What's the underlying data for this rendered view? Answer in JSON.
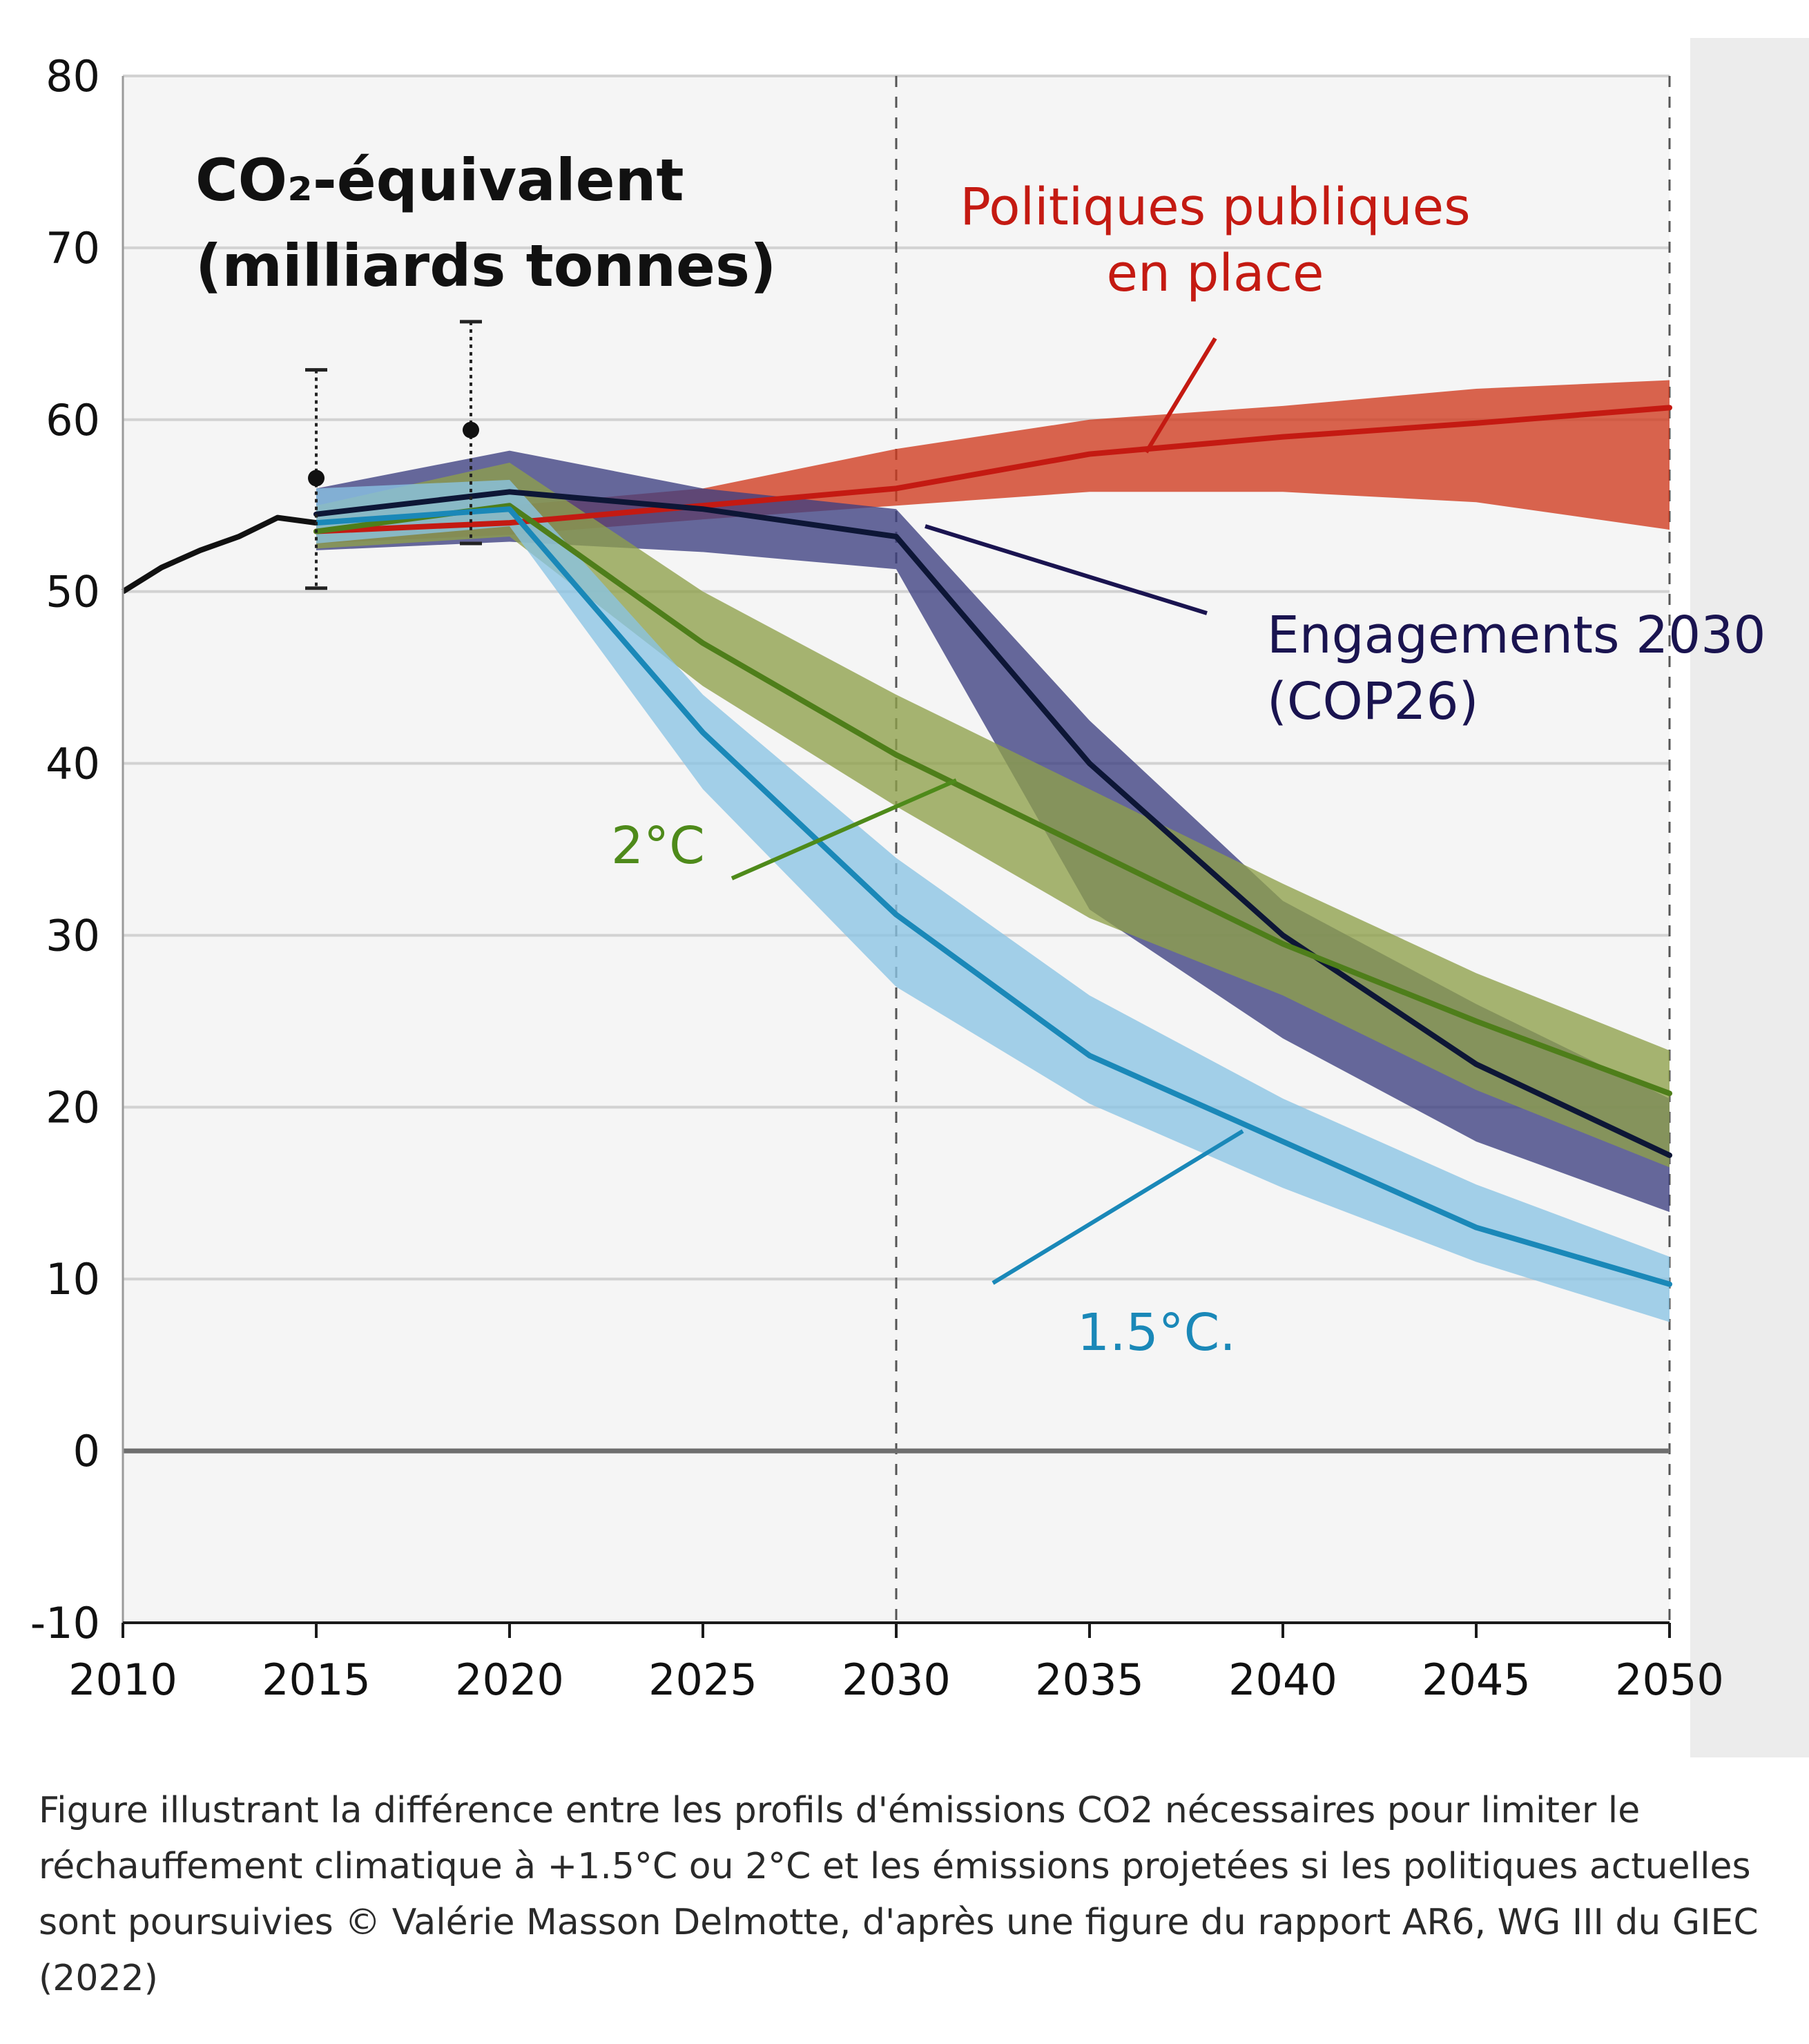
{
  "chart_data": {
    "type": "line",
    "title_lines": [
      "CO₂-équivalent",
      "(milliards tonnes)"
    ],
    "xlim": [
      2010,
      2050
    ],
    "ylim": [
      -10,
      80
    ],
    "x_ticks": [
      2010,
      2015,
      2020,
      2025,
      2030,
      2035,
      2040,
      2045,
      2050
    ],
    "y_ticks": [
      80,
      70,
      60,
      50,
      40,
      30,
      20,
      10,
      0,
      -10
    ],
    "vlines": [
      2030,
      2050
    ],
    "grid": true,
    "historical": {
      "x": [
        2010,
        2011,
        2012,
        2013,
        2014,
        2015
      ],
      "y": [
        50.0,
        51.4,
        52.4,
        53.2,
        54.3,
        54.0
      ]
    },
    "error_bars": [
      {
        "x": 2015,
        "y": 56.6,
        "low": 50.2,
        "high": 62.9
      },
      {
        "x": 2019,
        "y": 59.4,
        "low": 52.8,
        "high": 65.7
      }
    ],
    "series": [
      {
        "name": "Politiques publiques en place",
        "color": "#c41a12",
        "band_color": "#cf3a1e",
        "x": [
          2015,
          2020,
          2025,
          2030,
          2035,
          2040,
          2045,
          2050
        ],
        "y": [
          53.5,
          54.0,
          55.0,
          56.0,
          58.0,
          59.0,
          59.8,
          60.7
        ],
        "low": [
          52.8,
          53.3,
          54.2,
          55.0,
          55.8,
          55.8,
          55.2,
          53.6
        ],
        "high": [
          54.0,
          55.0,
          56.0,
          58.3,
          60.0,
          60.8,
          61.8,
          62.3
        ]
      },
      {
        "name": "Engagements 2030 (COP26)",
        "color": "#0d1636",
        "band_color": "#3c3f80",
        "x": [
          2015,
          2020,
          2025,
          2030,
          2035,
          2040,
          2045,
          2050
        ],
        "y": [
          54.5,
          55.8,
          54.8,
          53.2,
          40.0,
          30.0,
          22.5,
          17.2
        ],
        "low": [
          52.4,
          52.9,
          52.3,
          51.3,
          31.5,
          24.0,
          18.0,
          13.9
        ],
        "high": [
          56.0,
          58.2,
          56.0,
          54.8,
          42.5,
          32.0,
          26.0,
          20.5
        ]
      },
      {
        "name": "2°C",
        "color": "#4e7e1a",
        "band_color": "#8ea04a",
        "x": [
          2015,
          2020,
          2025,
          2030,
          2035,
          2040,
          2045,
          2050
        ],
        "y": [
          53.5,
          55.0,
          47.0,
          40.5,
          35.0,
          29.5,
          25.0,
          20.8
        ],
        "low": [
          52.5,
          53.2,
          44.5,
          37.5,
          31.0,
          26.5,
          21.0,
          16.5
        ],
        "high": [
          55.0,
          57.5,
          50.0,
          44.0,
          38.5,
          33.0,
          27.8,
          23.3
        ]
      },
      {
        "name": "1.5°C.",
        "color": "#1a88b8",
        "band_color": "#8ac4e4",
        "x": [
          2015,
          2020,
          2025,
          2030,
          2035,
          2040,
          2045,
          2050
        ],
        "y": [
          54.0,
          54.8,
          41.8,
          31.2,
          23.0,
          18.0,
          13.0,
          9.7
        ],
        "low": [
          52.8,
          53.8,
          38.5,
          27.0,
          20.2,
          15.3,
          11.0,
          7.5
        ],
        "high": [
          56.0,
          56.5,
          44.0,
          34.5,
          26.5,
          20.5,
          15.5,
          11.3
        ]
      }
    ],
    "annotations": [
      {
        "id": "pol",
        "lines": [
          "Politiques publiques",
          "en place"
        ],
        "color": "#c41a12"
      },
      {
        "id": "eng",
        "lines": [
          "Engagements 2030",
          "(COP26)"
        ],
        "color": "#1a1450"
      },
      {
        "id": "c2",
        "lines": [
          "2°C"
        ],
        "color": "#4e8a1a"
      },
      {
        "id": "c15",
        "lines": [
          "1.5°C."
        ],
        "color": "#1a88b8"
      }
    ]
  },
  "caption": "Figure illustrant la différence entre les profils d'émissions CO2 nécessaires pour limiter le réchauffement climatique à +1.5°C ou 2°C et les émissions projetées si les politiques actuelles sont poursuivies © Valérie Masson Delmotte, d'après une figure du rapport AR6, WG III du GIEC (2022)"
}
